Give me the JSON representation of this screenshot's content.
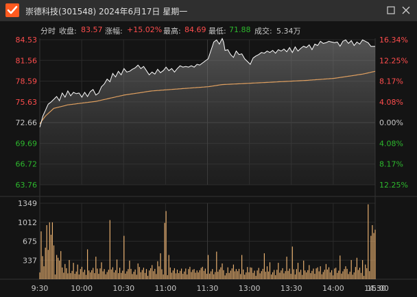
{
  "window": {
    "title": "崇德科技(301548) 2024年6月17日 星期一",
    "icons": {
      "app": "check-logo-icon",
      "maximize": "maximize-icon",
      "close": "close-icon"
    }
  },
  "info": {
    "mode": "分时",
    "close_label": "收盘:",
    "close_value": "83.57",
    "change_label": "涨幅:",
    "change_value": "+15.02%",
    "high_label": "最高:",
    "high_value": "84.69",
    "low_label": "最低:",
    "low_value": "71.88",
    "volume_label": "成交:",
    "volume_value": "5.34万"
  },
  "colors": {
    "up": "#ff4d4d",
    "down": "#2db82d",
    "price_line": "#ffffff",
    "avg_line": "#e0a060",
    "volume_bar": "#e8b070",
    "grid": "#2a2a2a"
  },
  "chart_data": {
    "type": "line",
    "price_axis": {
      "ticks": [
        "84.53",
        "81.56",
        "78.59",
        "75.63",
        "72.66",
        "69.69",
        "66.72",
        "63.76"
      ],
      "pct_ticks": [
        "16.34%",
        "12.25%",
        "8.17%",
        "4.08%",
        "0.00%",
        "4.08%",
        "8.17%",
        "12.25%"
      ],
      "ylim": [
        62.27,
        86.0
      ],
      "prev_close": 72.66
    },
    "volume_axis": {
      "ticks": [
        "1349",
        "1012",
        "675",
        "337"
      ],
      "ylim": [
        0,
        1349
      ]
    },
    "time_labels": [
      "9:30",
      "10:00",
      "10:30",
      "11:00",
      "11:30",
      "13:00",
      "13:30",
      "14:00",
      "14:30",
      "15:00"
    ],
    "minutes": 240,
    "price_keypoints": [
      [
        0,
        72.0
      ],
      [
        1,
        72.66
      ],
      [
        2,
        73.5
      ],
      [
        4,
        74.4
      ],
      [
        6,
        75.3
      ],
      [
        8,
        75.6
      ],
      [
        10,
        76.0
      ],
      [
        12,
        76.4
      ],
      [
        14,
        75.8
      ],
      [
        16,
        76.9
      ],
      [
        18,
        76.3
      ],
      [
        20,
        77.2
      ],
      [
        22,
        76.5
      ],
      [
        24,
        77.0
      ],
      [
        26,
        76.8
      ],
      [
        28,
        76.9
      ],
      [
        30,
        76.3
      ],
      [
        32,
        77.0
      ],
      [
        34,
        76.4
      ],
      [
        36,
        77.1
      ],
      [
        38,
        77.4
      ],
      [
        40,
        76.6
      ],
      [
        42,
        76.9
      ],
      [
        44,
        77.8
      ],
      [
        46,
        78.2
      ],
      [
        48,
        78.9
      ],
      [
        50,
        78.5
      ],
      [
        52,
        79.7
      ],
      [
        54,
        79.2
      ],
      [
        56,
        80.0
      ],
      [
        58,
        79.5
      ],
      [
        60,
        80.4
      ],
      [
        62,
        79.9
      ],
      [
        64,
        80.0
      ],
      [
        66,
        80.3
      ],
      [
        68,
        80.5
      ],
      [
        70,
        80.9
      ],
      [
        72,
        80.4
      ],
      [
        74,
        80.7
      ],
      [
        76,
        80.1
      ],
      [
        78,
        79.5
      ],
      [
        80,
        79.9
      ],
      [
        82,
        79.6
      ],
      [
        84,
        80.3
      ],
      [
        86,
        79.8
      ],
      [
        88,
        80.1
      ],
      [
        90,
        80.6
      ],
      [
        92,
        80.1
      ],
      [
        94,
        80.4
      ],
      [
        96,
        79.9
      ],
      [
        98,
        80.4
      ],
      [
        100,
        80.8
      ],
      [
        102,
        80.6
      ],
      [
        104,
        80.7
      ],
      [
        106,
        80.6
      ],
      [
        108,
        80.8
      ],
      [
        110,
        80.6
      ],
      [
        112,
        81.0
      ],
      [
        114,
        80.9
      ],
      [
        116,
        81.2
      ],
      [
        118,
        81.5
      ],
      [
        120,
        81.8
      ],
      [
        122,
        83.0
      ],
      [
        124,
        84.2
      ],
      [
        126,
        84.5
      ],
      [
        128,
        83.9
      ],
      [
        130,
        84.7
      ],
      [
        131,
        84.2
      ],
      [
        132,
        83.0
      ],
      [
        134,
        83.1
      ],
      [
        136,
        82.4
      ],
      [
        138,
        82.0
      ],
      [
        140,
        82.9
      ],
      [
        142,
        82.4
      ],
      [
        144,
        82.5
      ],
      [
        146,
        81.8
      ],
      [
        148,
        81.4
      ],
      [
        150,
        81.0
      ],
      [
        152,
        81.9
      ],
      [
        154,
        82.2
      ],
      [
        156,
        82.4
      ],
      [
        158,
        82.7
      ],
      [
        160,
        82.6
      ],
      [
        162,
        82.9
      ],
      [
        164,
        82.7
      ],
      [
        166,
        83.0
      ],
      [
        168,
        82.6
      ],
      [
        170,
        83.1
      ],
      [
        172,
        82.9
      ],
      [
        174,
        83.2
      ],
      [
        176,
        82.8
      ],
      [
        178,
        83.4
      ],
      [
        180,
        82.7
      ],
      [
        182,
        83.5
      ],
      [
        184,
        82.9
      ],
      [
        186,
        83.3
      ],
      [
        188,
        83.6
      ],
      [
        190,
        83.4
      ],
      [
        192,
        83.8
      ],
      [
        194,
        83.1
      ],
      [
        196,
        83.9
      ],
      [
        198,
        83.7
      ],
      [
        200,
        84.3
      ],
      [
        202,
        84.0
      ],
      [
        204,
        84.1
      ],
      [
        206,
        84.3
      ],
      [
        208,
        84.2
      ],
      [
        210,
        84.1
      ],
      [
        212,
        84.2
      ],
      [
        214,
        83.6
      ],
      [
        216,
        84.3
      ],
      [
        218,
        84.5
      ],
      [
        220,
        84.0
      ],
      [
        222,
        84.4
      ],
      [
        224,
        83.7
      ],
      [
        226,
        84.2
      ],
      [
        228,
        83.9
      ],
      [
        230,
        84.5
      ],
      [
        232,
        84.3
      ],
      [
        234,
        84.1
      ],
      [
        236,
        83.57
      ],
      [
        239,
        83.57
      ]
    ],
    "avg_keypoints": [
      [
        0,
        72.5
      ],
      [
        4,
        73.6
      ],
      [
        10,
        74.7
      ],
      [
        20,
        75.2
      ],
      [
        40,
        75.7
      ],
      [
        60,
        76.6
      ],
      [
        80,
        77.2
      ],
      [
        100,
        77.5
      ],
      [
        120,
        77.8
      ],
      [
        130,
        78.1
      ],
      [
        150,
        78.3
      ],
      [
        170,
        78.5
      ],
      [
        190,
        78.7
      ],
      [
        210,
        79.0
      ],
      [
        230,
        79.6
      ],
      [
        239,
        80.0
      ]
    ],
    "volume_spikes": [
      [
        0,
        120
      ],
      [
        1,
        850
      ],
      [
        2,
        410
      ],
      [
        3,
        230
      ],
      [
        4,
        560
      ],
      [
        5,
        960
      ],
      [
        6,
        520
      ],
      [
        7,
        1010
      ],
      [
        8,
        790
      ],
      [
        9,
        1010
      ],
      [
        10,
        600
      ],
      [
        12,
        430
      ],
      [
        13,
        380
      ],
      [
        14,
        330
      ],
      [
        15,
        500
      ],
      [
        18,
        270
      ],
      [
        21,
        340
      ],
      [
        24,
        290
      ],
      [
        27,
        260
      ],
      [
        30,
        220
      ],
      [
        34,
        530
      ],
      [
        40,
        400
      ],
      [
        44,
        300
      ],
      [
        50,
        1050
      ],
      [
        55,
        350
      ],
      [
        60,
        770
      ],
      [
        64,
        330
      ],
      [
        70,
        280
      ],
      [
        76,
        180
      ],
      [
        80,
        250
      ],
      [
        84,
        320
      ],
      [
        86,
        460
      ],
      [
        89,
        1000
      ],
      [
        90,
        1210
      ],
      [
        92,
        430
      ],
      [
        98,
        170
      ],
      [
        104,
        190
      ],
      [
        110,
        180
      ],
      [
        116,
        220
      ],
      [
        120,
        430
      ],
      [
        126,
        490
      ],
      [
        130,
        280
      ],
      [
        134,
        210
      ],
      [
        138,
        260
      ],
      [
        144,
        430
      ],
      [
        150,
        210
      ],
      [
        156,
        200
      ],
      [
        160,
        460
      ],
      [
        164,
        300
      ],
      [
        170,
        290
      ],
      [
        176,
        400
      ],
      [
        180,
        580
      ],
      [
        184,
        290
      ],
      [
        188,
        330
      ],
      [
        192,
        250
      ],
      [
        198,
        210
      ],
      [
        200,
        230
      ],
      [
        204,
        270
      ],
      [
        210,
        190
      ],
      [
        214,
        420
      ],
      [
        218,
        230
      ],
      [
        222,
        340
      ],
      [
        226,
        380
      ],
      [
        230,
        340
      ],
      [
        232,
        260
      ],
      [
        234,
        1330
      ],
      [
        236,
        770
      ],
      [
        237,
        960
      ],
      [
        238,
        820
      ],
      [
        239,
        880
      ]
    ]
  }
}
